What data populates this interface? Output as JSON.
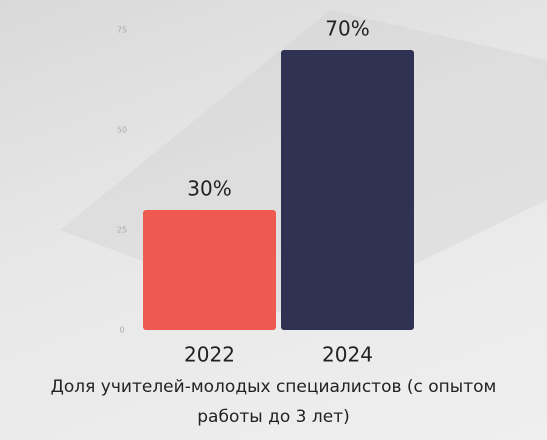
{
  "chart_data": {
    "type": "bar",
    "categories": [
      "2022",
      "2024"
    ],
    "values": [
      30,
      70
    ],
    "value_labels": [
      "30%",
      "70%"
    ],
    "colors": [
      "#ee5a50",
      "#2f3253"
    ],
    "ylim": [
      0,
      75
    ],
    "yticks": [
      0,
      25,
      50,
      75
    ],
    "caption": "Доля учителей-молодых специалистов (с опытом работы до 3 лет)"
  }
}
